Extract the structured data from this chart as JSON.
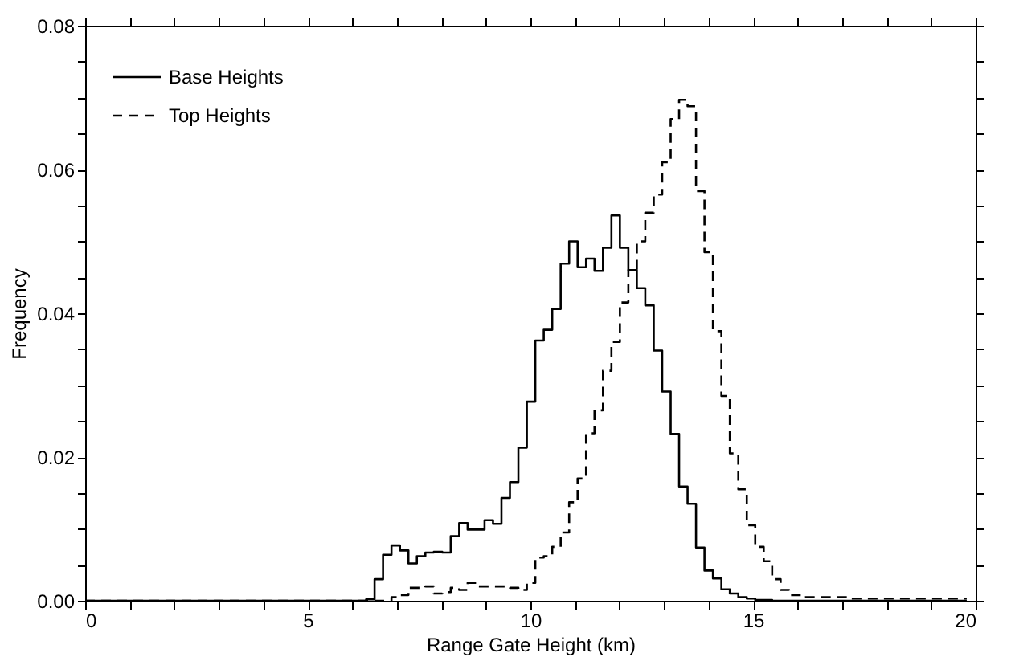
{
  "chart_data": {
    "type": "step",
    "xlabel": "Range Gate Height (km)",
    "ylabel": "Frequency",
    "x": [
      0,
      6.31,
      6.5,
      6.69,
      6.88,
      7.07,
      7.26,
      7.45,
      7.64,
      7.83,
      8.02,
      8.21,
      8.4,
      8.59,
      8.78,
      8.97,
      9.16,
      9.35,
      9.54,
      9.73,
      9.92,
      10.11,
      10.3,
      10.49,
      10.68,
      10.87,
      11.06,
      11.25,
      11.44,
      11.63,
      11.82,
      12.01,
      12.2,
      12.39,
      12.58,
      12.77,
      12.96,
      13.15,
      13.34,
      13.53,
      13.72,
      13.91,
      14.1,
      14.29,
      14.48,
      14.67,
      14.86,
      15.05,
      15.24,
      15.43,
      15.62,
      15.81,
      16,
      16.19,
      16.38,
      16.57,
      16.76,
      16.95,
      17.14,
      17.33,
      17.52,
      17.71,
      17.9,
      18.09,
      18.28,
      18.47,
      18.66,
      18.85,
      19.04,
      19.23,
      19.42,
      19.61,
      19.8
    ],
    "series": [
      {
        "name": "Base Heights",
        "color": "#000000",
        "line_style": "solid",
        "values": [
          0,
          0.0002,
          0.003,
          0.0064,
          0.0077,
          0.007,
          0.0052,
          0.0062,
          0.0067,
          0.0068,
          0.0067,
          0.009,
          0.0108,
          0.0099,
          0.0099,
          0.0112,
          0.0107,
          0.0143,
          0.0165,
          0.0213,
          0.0277,
          0.0362,
          0.0377,
          0.0406,
          0.0469,
          0.05,
          0.0464,
          0.0476,
          0.0459,
          0.0491,
          0.0536,
          0.0491,
          0.046,
          0.0435,
          0.0411,
          0.0348,
          0.0291,
          0.0232,
          0.0159,
          0.0135,
          0.0074,
          0.0042,
          0.0031,
          0.0016,
          0.001,
          0.0005,
          0.0003,
          0.0001,
          0.0001,
          0,
          0,
          0,
          0,
          0,
          0,
          0,
          0,
          0,
          0,
          0,
          0,
          0,
          0,
          0,
          0,
          0,
          0,
          0,
          0,
          0,
          0,
          0,
          0
        ]
      },
      {
        "name": "Top Heights",
        "color": "#000000",
        "line_style": "dashed",
        "values": [
          0,
          0,
          0,
          0,
          0.0005,
          0.0008,
          0.0018,
          0.0018,
          0.002,
          0.001,
          0.0012,
          0.0018,
          0.0015,
          0.0025,
          0.002,
          0.002,
          0.002,
          0.002,
          0.0018,
          0.0015,
          0.0025,
          0.006,
          0.0062,
          0.0075,
          0.0095,
          0.0137,
          0.017,
          0.0233,
          0.0265,
          0.032,
          0.036,
          0.0415,
          0.046,
          0.05,
          0.054,
          0.0565,
          0.061,
          0.067,
          0.0697,
          0.0688,
          0.057,
          0.0485,
          0.0375,
          0.0285,
          0.0205,
          0.0155,
          0.0105,
          0.0075,
          0.0055,
          0.003,
          0.0015,
          0.0008,
          0.0008,
          0.0005,
          0.0005,
          0.0005,
          0.0005,
          0.0005,
          0.0003,
          0.0003,
          0.0003,
          0.0003,
          0.0003,
          0.0003,
          0.0003,
          0.0003,
          0.0003,
          0.0003,
          0.0003,
          0.0003,
          0.0003,
          0.0003,
          0.0003
        ]
      }
    ],
    "xlim": [
      0,
      20
    ],
    "xticks": [
      0,
      {
        "value": 1,
        "label": null
      },
      {
        "value": 2,
        "label": null
      },
      {
        "value": 3,
        "label": null
      },
      {
        "value": 4,
        "label": null
      },
      5,
      {
        "value": 6,
        "label": null
      },
      {
        "value": 7,
        "label": null
      },
      {
        "value": 8,
        "label": null
      },
      {
        "value": 9,
        "label": null
      },
      10,
      {
        "value": 11,
        "label": null
      },
      {
        "value": 12,
        "label": null
      },
      {
        "value": 13,
        "label": null
      },
      {
        "value": 14,
        "label": null
      },
      15,
      {
        "value": 16,
        "label": null
      },
      {
        "value": 17,
        "label": null
      },
      {
        "value": 18,
        "label": null
      },
      {
        "value": 19,
        "label": null
      },
      20
    ],
    "ylim": [
      0,
      0.08
    ],
    "yticks": [
      {
        "value": 0,
        "label": "0.00"
      },
      {
        "value": 0.005,
        "label": null
      },
      {
        "value": 0.01,
        "label": null
      },
      {
        "value": 0.015,
        "label": null
      },
      {
        "value": 0.02,
        "label": "0.02"
      },
      {
        "value": 0.025,
        "label": null
      },
      {
        "value": 0.03,
        "label": null
      },
      {
        "value": 0.035,
        "label": null
      },
      {
        "value": 0.04,
        "label": "0.04"
      },
      {
        "value": 0.045,
        "label": null
      },
      {
        "value": 0.05,
        "label": null
      },
      {
        "value": 0.055,
        "label": null
      },
      {
        "value": 0.06,
        "label": "0.06"
      },
      {
        "value": 0.065,
        "label": null
      },
      {
        "value": 0.07,
        "label": null
      },
      {
        "value": 0.075,
        "label": null
      },
      {
        "value": 0.08,
        "label": "0.08"
      }
    ],
    "grid": false,
    "legend": "top left"
  }
}
